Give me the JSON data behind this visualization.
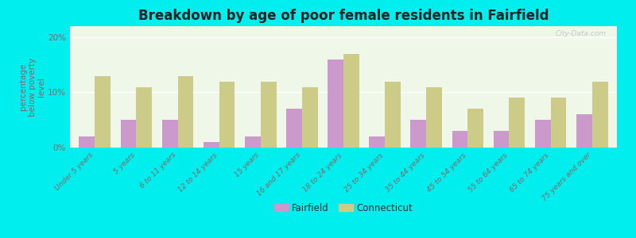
{
  "title": "Breakdown by age of poor female residents in Fairfield",
  "categories": [
    "Under 5 years",
    "5 years",
    "6 to 11 years",
    "12 to 14 years",
    "15 years",
    "16 and 17 years",
    "18 to 24 years",
    "25 to 34 years",
    "35 to 44 years",
    "45 to 54 years",
    "55 to 64 years",
    "65 to 74 years",
    "75 years and over"
  ],
  "fairfield_values": [
    2.0,
    5.0,
    5.0,
    1.0,
    2.0,
    7.0,
    16.0,
    2.0,
    5.0,
    3.0,
    3.0,
    5.0,
    6.0
  ],
  "connecticut_values": [
    13.0,
    11.0,
    13.0,
    12.0,
    12.0,
    11.0,
    17.0,
    12.0,
    11.0,
    7.0,
    9.0,
    9.0,
    12.0
  ],
  "fairfield_color": "#cc99cc",
  "connecticut_color": "#cccc88",
  "ylabel": "percentage\nbelow poverty\nlevel",
  "ylim": [
    0,
    22
  ],
  "yticks": [
    0,
    10,
    20
  ],
  "ytick_labels": [
    "0%",
    "10%",
    "20%"
  ],
  "plot_bg_color": "#eef7e8",
  "outer_background": "#00eeee",
  "bar_width": 0.38,
  "title_fontsize": 12,
  "legend_labels": [
    "Fairfield",
    "Connecticut"
  ],
  "tick_color": "#886666",
  "ylabel_color": "#886666"
}
